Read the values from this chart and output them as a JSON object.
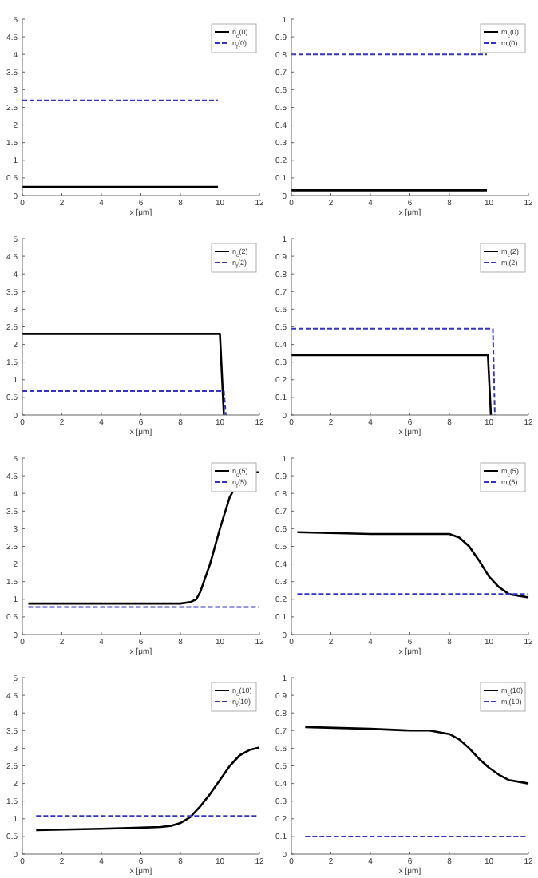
{
  "chart_data": [
    {
      "type": "line",
      "xlabel": "x [μm]",
      "xlim": [
        0,
        12
      ],
      "xticks": [
        0,
        2,
        4,
        6,
        8,
        10,
        12
      ],
      "ylim": [
        0,
        5
      ],
      "yticks": [
        0,
        0.5,
        1,
        1.5,
        2,
        2.5,
        3,
        3.5,
        4,
        4.5,
        5
      ],
      "legend": "top right",
      "grid": false,
      "series": [
        {
          "name": "n$_{c}$(0)",
          "color": "#000000",
          "line_style": "solid",
          "x": [
            0,
            9.9
          ],
          "values": [
            0.25,
            0.25
          ]
        },
        {
          "name": "n$_{f}$(0)",
          "color": "#3333cc",
          "line_style": "dashed",
          "x": [
            0,
            9.9
          ],
          "values": [
            2.7,
            2.7
          ]
        }
      ]
    },
    {
      "type": "line",
      "xlabel": "x [μm]",
      "xlim": [
        0,
        12
      ],
      "xticks": [
        0,
        2,
        4,
        6,
        8,
        10,
        12
      ],
      "ylim": [
        0,
        1
      ],
      "yticks": [
        0,
        0.1,
        0.2,
        0.3,
        0.4,
        0.5,
        0.6,
        0.7,
        0.8,
        0.9,
        1
      ],
      "legend": "top right",
      "grid": false,
      "series": [
        {
          "name": "m$_{c}$(0)",
          "color": "#000000",
          "line_style": "solid",
          "x": [
            0,
            9.9
          ],
          "values": [
            0.03,
            0.03
          ]
        },
        {
          "name": "m$_{f}$(0)",
          "color": "#3333cc",
          "line_style": "dashed",
          "x": [
            0,
            9.9
          ],
          "values": [
            0.8,
            0.8
          ]
        }
      ]
    },
    {
      "type": "line",
      "xlabel": "x [μm]",
      "xlim": [
        0,
        12
      ],
      "xticks": [
        0,
        2,
        4,
        6,
        8,
        10,
        12
      ],
      "ylim": [
        0,
        5
      ],
      "yticks": [
        0,
        0.5,
        1,
        1.5,
        2,
        2.5,
        3,
        3.5,
        4,
        4.5,
        5
      ],
      "legend": "top right",
      "grid": false,
      "series": [
        {
          "name": "n$_{c}$(2)",
          "color": "#000000",
          "line_style": "solid",
          "x": [
            0,
            10,
            10.2
          ],
          "values": [
            2.3,
            2.3,
            0
          ]
        },
        {
          "name": "n$_{f}$(2)",
          "color": "#3333cc",
          "line_style": "dashed",
          "x": [
            0,
            10.2,
            10.3
          ],
          "values": [
            0.68,
            0.68,
            0
          ]
        }
      ]
    },
    {
      "type": "line",
      "xlabel": "x [μm]",
      "xlim": [
        0,
        12
      ],
      "xticks": [
        0,
        2,
        4,
        6,
        8,
        10,
        12
      ],
      "ylim": [
        0,
        1
      ],
      "yticks": [
        0,
        0.1,
        0.2,
        0.3,
        0.4,
        0.5,
        0.6,
        0.7,
        0.8,
        0.9,
        1
      ],
      "legend": "top right",
      "grid": false,
      "series": [
        {
          "name": "m$_{c}$(2)",
          "color": "#000000",
          "line_style": "solid",
          "x": [
            0,
            9.95,
            10.1
          ],
          "values": [
            0.34,
            0.34,
            0
          ]
        },
        {
          "name": "m$_{f}$(2)",
          "color": "#3333cc",
          "line_style": "dashed",
          "x": [
            0,
            10.2,
            10.3
          ],
          "values": [
            0.49,
            0.49,
            0
          ]
        }
      ]
    },
    {
      "type": "line",
      "xlabel": "x [μm]",
      "xlim": [
        0,
        12
      ],
      "xticks": [
        0,
        2,
        4,
        6,
        8,
        10,
        12
      ],
      "ylim": [
        0,
        5
      ],
      "yticks": [
        0,
        0.5,
        1,
        1.5,
        2,
        2.5,
        3,
        3.5,
        4,
        4.5,
        5
      ],
      "legend": "top right",
      "grid": false,
      "series": [
        {
          "name": "n$_{c}$(5)",
          "color": "#000000",
          "line_style": "solid",
          "x": [
            0.3,
            4,
            8,
            8.5,
            8.8,
            9,
            9.5,
            10,
            10.5,
            11,
            11.5,
            12
          ],
          "values": [
            0.88,
            0.88,
            0.88,
            0.92,
            1.0,
            1.2,
            2.0,
            3.0,
            3.9,
            4.4,
            4.6,
            4.6
          ]
        },
        {
          "name": "n$_{f}$(5)",
          "color": "#3333cc",
          "line_style": "dashed",
          "x": [
            0.3,
            12
          ],
          "values": [
            0.78,
            0.78
          ]
        }
      ]
    },
    {
      "type": "line",
      "xlabel": "x [μm]",
      "xlim": [
        0,
        12
      ],
      "xticks": [
        0,
        2,
        4,
        6,
        8,
        10,
        12
      ],
      "ylim": [
        0,
        1
      ],
      "yticks": [
        0,
        0.1,
        0.2,
        0.3,
        0.4,
        0.5,
        0.6,
        0.7,
        0.8,
        0.9,
        1
      ],
      "legend": "top right",
      "grid": false,
      "series": [
        {
          "name": "m$_{c}$(5)",
          "color": "#000000",
          "line_style": "solid",
          "x": [
            0.3,
            4,
            8,
            8.5,
            9,
            9.5,
            10,
            10.5,
            11,
            11.5,
            12
          ],
          "values": [
            0.58,
            0.57,
            0.57,
            0.55,
            0.5,
            0.42,
            0.33,
            0.27,
            0.23,
            0.22,
            0.21
          ]
        },
        {
          "name": "m$_{f}$(5)",
          "color": "#3333cc",
          "line_style": "dashed",
          "x": [
            0.3,
            12
          ],
          "values": [
            0.23,
            0.23
          ]
        }
      ]
    },
    {
      "type": "line",
      "xlabel": "x [μm]",
      "xlim": [
        0,
        12
      ],
      "xticks": [
        0,
        2,
        4,
        6,
        8,
        10,
        12
      ],
      "ylim": [
        0,
        5
      ],
      "yticks": [
        0,
        0.5,
        1,
        1.5,
        2,
        2.5,
        3,
        3.5,
        4,
        4.5,
        5
      ],
      "legend": "top right",
      "grid": false,
      "series": [
        {
          "name": "n$_{c}$(10)",
          "color": "#000000",
          "line_style": "solid",
          "x": [
            0.7,
            4,
            6,
            7,
            7.5,
            8,
            8.5,
            9,
            9.5,
            10,
            10.5,
            11,
            11.5,
            12
          ],
          "values": [
            0.68,
            0.72,
            0.75,
            0.77,
            0.8,
            0.88,
            1.05,
            1.35,
            1.7,
            2.1,
            2.5,
            2.8,
            2.95,
            3.02
          ]
        },
        {
          "name": "n$_{f}$(10)",
          "color": "#3333cc",
          "line_style": "dashed",
          "x": [
            0.7,
            12
          ],
          "values": [
            1.08,
            1.08
          ]
        }
      ]
    },
    {
      "type": "line",
      "xlabel": "x [μm]",
      "xlim": [
        0,
        12
      ],
      "xticks": [
        0,
        2,
        4,
        6,
        8,
        10,
        12
      ],
      "ylim": [
        0,
        1
      ],
      "yticks": [
        0,
        0.1,
        0.2,
        0.3,
        0.4,
        0.5,
        0.6,
        0.7,
        0.8,
        0.9,
        1
      ],
      "legend": "top right",
      "grid": false,
      "series": [
        {
          "name": "m$_{c}$(10)",
          "color": "#000000",
          "line_style": "solid",
          "x": [
            0.7,
            4,
            6,
            7,
            8,
            8.5,
            9,
            9.5,
            10,
            10.5,
            11,
            11.5,
            12
          ],
          "values": [
            0.72,
            0.71,
            0.7,
            0.7,
            0.68,
            0.65,
            0.6,
            0.54,
            0.49,
            0.45,
            0.42,
            0.41,
            0.4
          ]
        },
        {
          "name": "m$_{f}$(10)",
          "color": "#3333cc",
          "line_style": "dashed",
          "x": [
            0.7,
            12
          ],
          "values": [
            0.1,
            0.1
          ]
        }
      ]
    }
  ]
}
